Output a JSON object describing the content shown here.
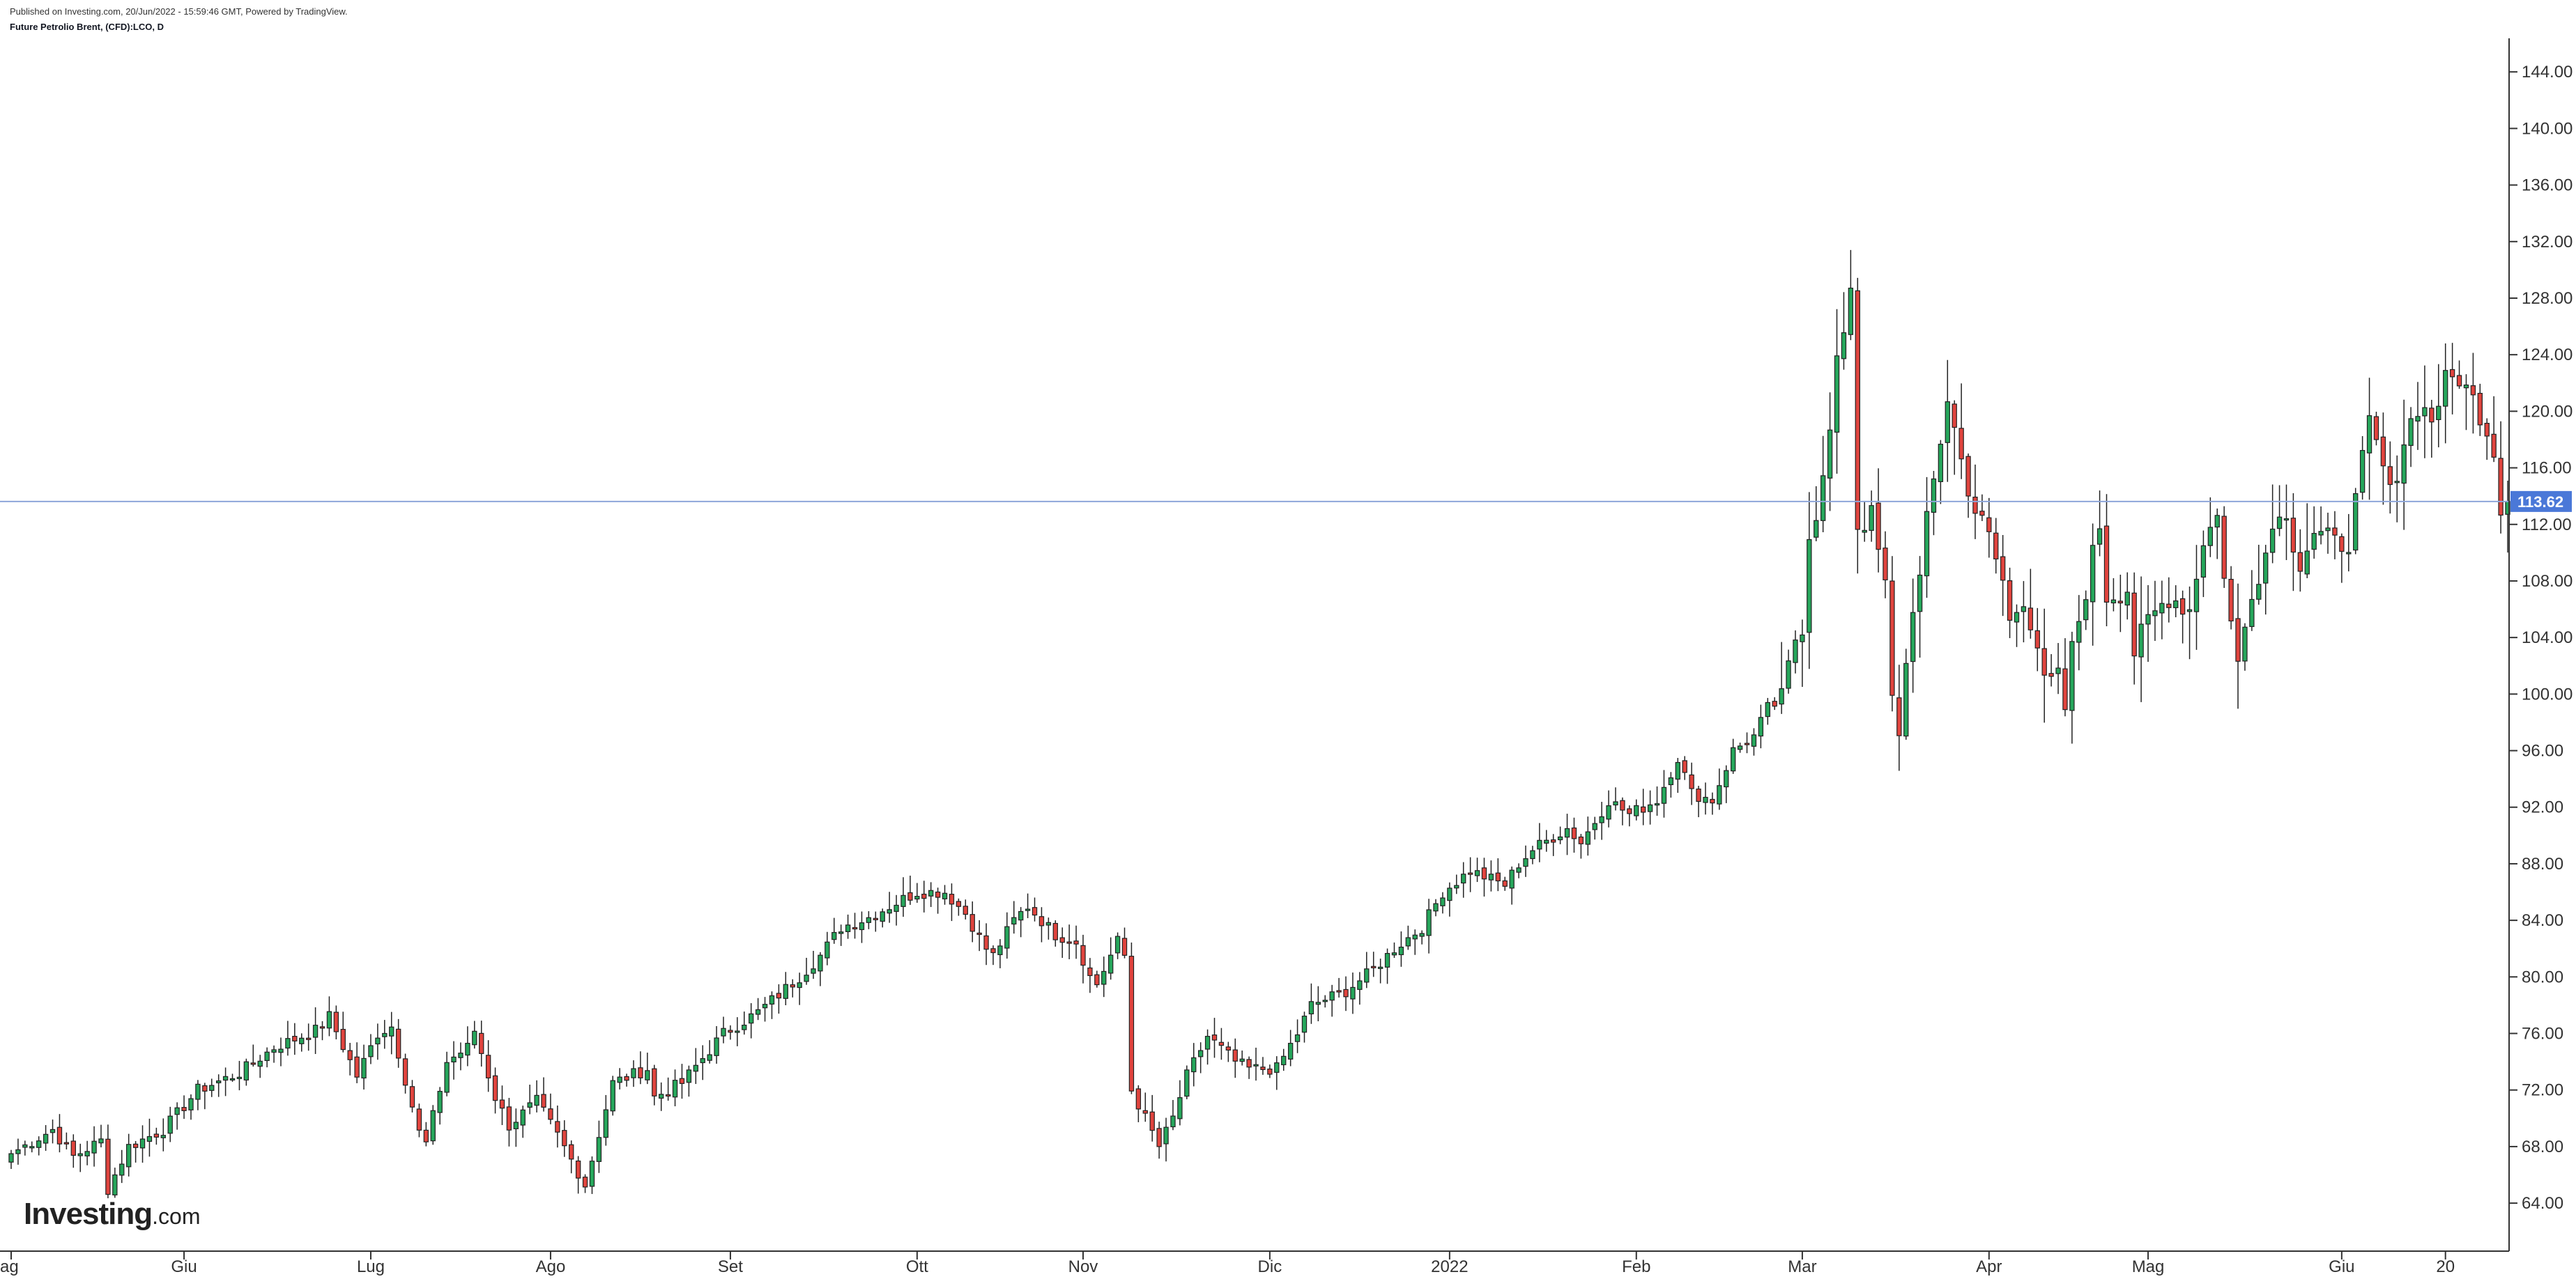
{
  "header": {
    "published": "Published on Investing.com, 20/Jun/2022 - 15:59:46 GMT, Powered by TradingView.",
    "symbol": "Future Petrolio Brent, (CFD):LCO, D"
  },
  "logo": {
    "brand": "Investing",
    "domain": ".com"
  },
  "colors": {
    "up": "#26a65b",
    "down": "#e0443e",
    "wick": "#222222",
    "price_line": "#8ea6d9",
    "price_label_bg": "#4a78d8",
    "axis": "#333333"
  },
  "chart_data": {
    "type": "candlestick",
    "title": "Future Petrolio Brent, (CFD):LCO, D",
    "current_price": 113.62,
    "current_price_label": "113.62",
    "ylim": [
      61.0,
      148.0
    ],
    "y_ticks": [
      "64.00",
      "68.00",
      "72.00",
      "76.00",
      "80.00",
      "84.00",
      "88.00",
      "92.00",
      "96.00",
      "100.00",
      "104.00",
      "108.00",
      "112.00",
      "116.00",
      "120.00",
      "124.00",
      "128.00",
      "132.00",
      "136.00",
      "140.00",
      "144.00"
    ],
    "x_ticks": [
      "ag",
      "Giu",
      "Lug",
      "Ago",
      "Set",
      "Ott",
      "Nov",
      "Dic",
      "2022",
      "Feb",
      "Mar",
      "Apr",
      "Mag",
      "Giu",
      "20"
    ],
    "grid": false,
    "legend": "none",
    "anchors": [
      [
        0,
        67.5
      ],
      [
        6,
        69.2
      ],
      [
        9,
        67.3
      ],
      [
        13,
        68.4
      ],
      [
        14,
        65.0
      ],
      [
        17,
        68.0
      ],
      [
        22,
        69.2
      ],
      [
        27,
        72.0
      ],
      [
        33,
        73.2
      ],
      [
        38,
        75.0
      ],
      [
        44,
        76.2
      ],
      [
        46,
        77.2
      ],
      [
        50,
        73.0
      ],
      [
        53,
        76.0
      ],
      [
        55,
        76.5
      ],
      [
        59,
        69.0
      ],
      [
        60,
        68.2
      ],
      [
        63,
        74.0
      ],
      [
        66,
        75.0
      ],
      [
        67,
        76.2
      ],
      [
        70,
        71.5
      ],
      [
        72,
        69.5
      ],
      [
        76,
        71.2
      ],
      [
        79,
        68.8
      ],
      [
        82,
        66.2
      ],
      [
        83,
        65.3
      ],
      [
        87,
        72.5
      ],
      [
        92,
        73.5
      ],
      [
        93,
        71.5
      ],
      [
        97,
        72.5
      ],
      [
        103,
        76.0
      ],
      [
        108,
        77.5
      ],
      [
        114,
        80.0
      ],
      [
        117,
        81.5
      ],
      [
        120,
        83.5
      ],
      [
        124,
        84.2
      ],
      [
        127,
        85.0
      ],
      [
        131,
        86.0
      ],
      [
        135,
        86.0
      ],
      [
        138,
        84.5
      ],
      [
        141,
        82.0
      ],
      [
        142,
        81.5
      ],
      [
        145,
        84.0
      ],
      [
        147,
        85.0
      ],
      [
        151,
        83.0
      ],
      [
        154,
        82.5
      ],
      [
        156,
        80.0
      ],
      [
        157,
        79.5
      ],
      [
        160,
        82.5
      ],
      [
        161,
        81.5
      ],
      [
        162,
        72.0
      ],
      [
        164,
        70.0
      ],
      [
        166,
        68.0
      ],
      [
        168,
        70.0
      ],
      [
        170,
        73.0
      ],
      [
        173,
        75.8
      ],
      [
        177,
        74.0
      ],
      [
        179,
        73.5
      ],
      [
        183,
        73.5
      ],
      [
        186,
        76.0
      ],
      [
        188,
        78.0
      ],
      [
        193,
        79.0
      ],
      [
        197,
        80.5
      ],
      [
        200,
        82.0
      ],
      [
        204,
        83.5
      ],
      [
        207,
        86.0
      ],
      [
        211,
        87.5
      ],
      [
        216,
        86.5
      ],
      [
        218,
        88.0
      ],
      [
        220,
        89.0
      ],
      [
        225,
        90.5
      ],
      [
        227,
        89.5
      ],
      [
        231,
        92.5
      ],
      [
        234,
        91.5
      ],
      [
        238,
        92.5
      ],
      [
        241,
        95.5
      ],
      [
        243,
        93.0
      ],
      [
        246,
        92.5
      ],
      [
        249,
        96.0
      ],
      [
        252,
        97.0
      ],
      [
        254,
        99.0
      ],
      [
        256,
        99.5
      ],
      [
        258,
        104.0
      ],
      [
        259,
        105.0
      ],
      [
        260,
        111.5
      ],
      [
        261,
        113.0
      ],
      [
        262,
        115.0
      ],
      [
        263,
        118.5
      ],
      [
        264,
        123.0
      ],
      [
        265,
        126.0
      ],
      [
        266,
        129.0
      ],
      [
        267,
        112.0
      ],
      [
        269,
        112.5
      ],
      [
        271,
        107.5
      ],
      [
        272,
        99.5
      ],
      [
        273,
        97.5
      ],
      [
        275,
        106.5
      ],
      [
        276,
        108.0
      ],
      [
        277,
        112.0
      ],
      [
        279,
        118.0
      ],
      [
        280,
        121.0
      ],
      [
        282,
        116.5
      ],
      [
        284,
        113.0
      ],
      [
        286,
        111.0
      ],
      [
        288,
        108.0
      ],
      [
        289,
        105.0
      ],
      [
        291,
        107.0
      ],
      [
        293,
        103.5
      ],
      [
        294,
        100.5
      ],
      [
        296,
        101.0
      ],
      [
        297,
        99.0
      ],
      [
        298,
        103.0
      ],
      [
        300,
        107.5
      ],
      [
        302,
        112.0
      ],
      [
        303,
        107.0
      ],
      [
        306,
        107.5
      ],
      [
        307,
        103.0
      ],
      [
        309,
        105.0
      ],
      [
        312,
        107.0
      ],
      [
        315,
        106.0
      ],
      [
        317,
        111.0
      ],
      [
        319,
        112.5
      ],
      [
        321,
        105.0
      ],
      [
        322,
        102.0
      ],
      [
        324,
        107.5
      ],
      [
        326,
        110.0
      ],
      [
        328,
        113.5
      ],
      [
        331,
        109.5
      ],
      [
        333,
        111.5
      ],
      [
        336,
        110.5
      ],
      [
        338,
        111.0
      ],
      [
        339,
        113.5
      ],
      [
        341,
        119.0
      ],
      [
        343,
        116.0
      ],
      [
        344,
        114.0
      ],
      [
        346,
        118.0
      ],
      [
        348,
        120.5
      ],
      [
        350,
        119.5
      ],
      [
        352,
        122.0
      ],
      [
        354,
        122.5
      ],
      [
        355,
        121.5
      ],
      [
        357,
        120.0
      ],
      [
        359,
        117.5
      ],
      [
        360,
        113.0
      ],
      [
        361,
        113.62
      ]
    ]
  }
}
